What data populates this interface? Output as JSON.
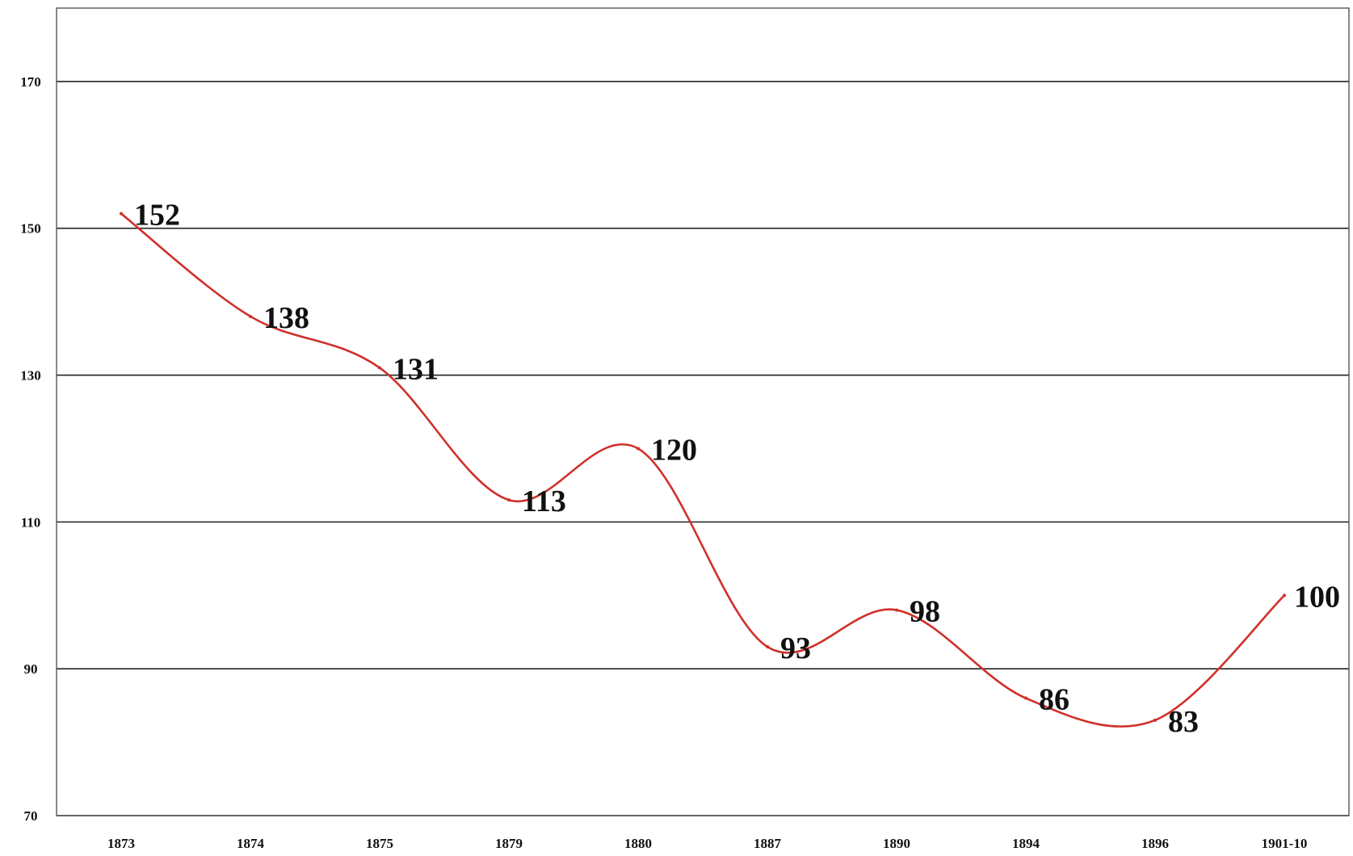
{
  "chart_data": {
    "type": "line",
    "title": "",
    "xlabel": "",
    "ylabel": "",
    "categories": [
      "1873",
      "1874",
      "1875",
      "1879",
      "1880",
      "1887",
      "1890",
      "1894",
      "1896",
      "1901-10"
    ],
    "series": [
      {
        "values": [
          152,
          138,
          131,
          113,
          120,
          93,
          98,
          86,
          83,
          100
        ],
        "color": "#d0302a"
      }
    ],
    "ylim": [
      70,
      180
    ],
    "yticks": [
      70,
      90,
      110,
      130,
      150,
      170
    ],
    "grid": true,
    "legend": "none"
  }
}
